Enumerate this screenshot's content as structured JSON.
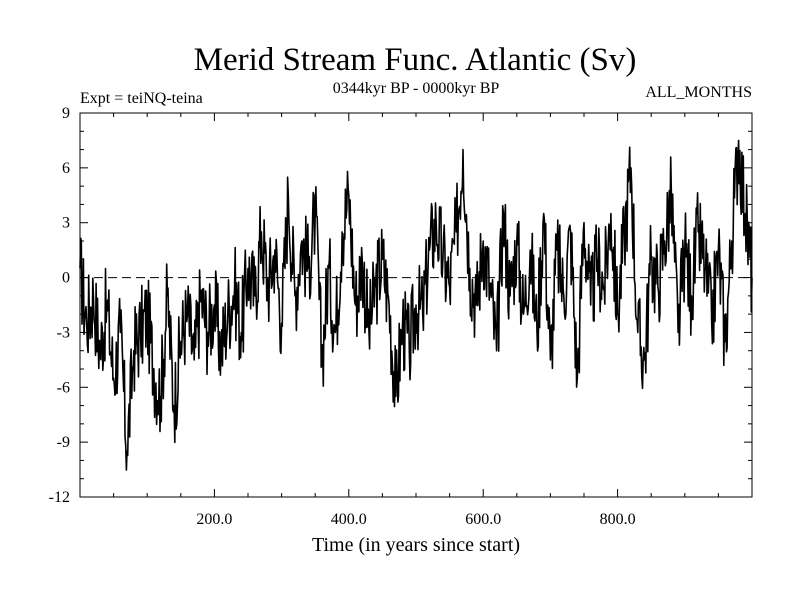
{
  "chart_data": {
    "type": "line",
    "title": "Merid Stream Func. Atlantic (Sv)",
    "subtitle_left": "Expt = teiNQ-teina",
    "subtitle_center": "0344kyr BP - 0000kyr BP",
    "subtitle_right": "ALL_MONTHS",
    "xlabel": "Time (in years since start)",
    "ylabel": "",
    "xlim": [
      0,
      1000
    ],
    "ylim": [
      -12,
      9
    ],
    "xticks": [
      200,
      400,
      600,
      800
    ],
    "xtick_labels": [
      "200.0",
      "400.0",
      "600.0",
      "800.0"
    ],
    "yticks": [
      9,
      6,
      3,
      0,
      -3,
      -6,
      -9,
      -12
    ],
    "ytick_labels": [
      "9",
      "6",
      "3",
      "0",
      "-3",
      "-6",
      "-9",
      "-12"
    ],
    "zero_line": true,
    "series": [
      {
        "name": "Merid Stream Func. Atlantic",
        "x": [
          0,
          10,
          20,
          30,
          40,
          50,
          60,
          70,
          80,
          90,
          100,
          110,
          120,
          130,
          140,
          150,
          160,
          170,
          180,
          190,
          200,
          210,
          220,
          230,
          240,
          250,
          260,
          270,
          280,
          290,
          300,
          310,
          320,
          330,
          340,
          350,
          360,
          370,
          380,
          390,
          400,
          410,
          420,
          430,
          440,
          450,
          460,
          470,
          480,
          490,
          500,
          510,
          520,
          530,
          540,
          550,
          560,
          570,
          580,
          590,
          600,
          610,
          620,
          630,
          640,
          650,
          660,
          670,
          680,
          690,
          700,
          710,
          720,
          730,
          740,
          750,
          760,
          770,
          780,
          790,
          800,
          810,
          820,
          830,
          840,
          850,
          860,
          870,
          880,
          890,
          900,
          910,
          920,
          930,
          940,
          950,
          960,
          970,
          980,
          990,
          1000
        ],
        "values": [
          0.5,
          -2.5,
          -1.0,
          -4.0,
          -1.5,
          -5.5,
          -3.0,
          -9.5,
          -4.0,
          -3.0,
          -2.0,
          -5.0,
          -6.5,
          -1.0,
          -7.0,
          -3.5,
          -2.0,
          -4.5,
          -1.0,
          -3.0,
          -1.5,
          -4.0,
          -2.0,
          -0.5,
          -3.0,
          0.5,
          -1.0,
          2.5,
          -0.5,
          1.5,
          -2.5,
          4.5,
          -1.0,
          2.0,
          0.5,
          3.5,
          -4.5,
          0.5,
          -3.0,
          2.5,
          4.5,
          -1.5,
          1.0,
          -3.0,
          -0.5,
          1.0,
          -1.5,
          -6.5,
          -2.5,
          -4.0,
          -1.5,
          -2.0,
          1.5,
          3.0,
          1.0,
          -0.5,
          2.5,
          7.0,
          0.5,
          -1.5,
          2.0,
          -0.5,
          -4.0,
          3.5,
          -1.0,
          2.0,
          -2.0,
          1.5,
          -3.0,
          3.5,
          -4.5,
          1.5,
          -1.0,
          2.5,
          -5.5,
          3.0,
          -1.5,
          1.0,
          -0.5,
          3.5,
          -2.0,
          2.5,
          6.0,
          -3.0,
          -4.5,
          1.0,
          -0.5,
          2.0,
          4.5,
          -3.0,
          1.5,
          -1.0,
          2.5,
          0.5,
          -2.5,
          1.5,
          -3.5,
          2.0,
          7.5,
          3.5,
          0.0
        ]
      }
    ]
  }
}
